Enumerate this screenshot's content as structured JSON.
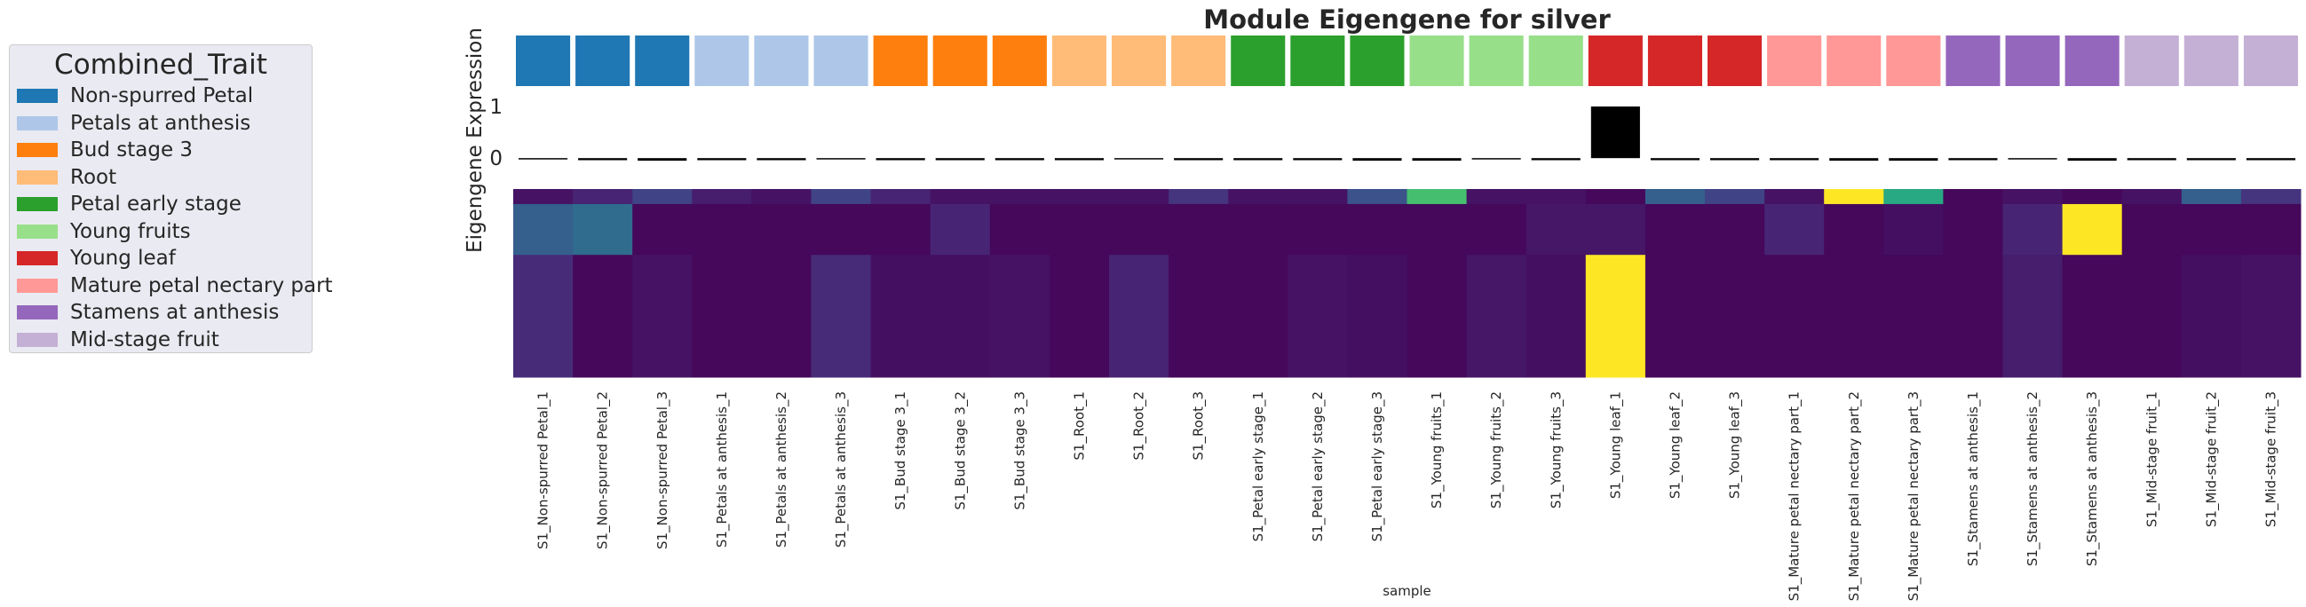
{
  "chart_data": {
    "type": "heatmap",
    "title": "Module Eigengene for silver",
    "ylabel": "Eigengene Expression",
    "xlabel": "sample",
    "yticks": [
      "1",
      "0"
    ],
    "ylim": [
      -0.1,
      1.0
    ],
    "legend": {
      "title": "Combined_Trait",
      "placement": "left",
      "entries": [
        {
          "label": "Non-spurred Petal",
          "color": "#1f77b4"
        },
        {
          "label": "Petals at anthesis",
          "color": "#aec7e8"
        },
        {
          "label": "Bud stage 3",
          "color": "#ff7f0e"
        },
        {
          "label": "Root",
          "color": "#ffbb78"
        },
        {
          "label": "Petal early stage",
          "color": "#2ca02c"
        },
        {
          "label": "Young fruits",
          "color": "#98df8a"
        },
        {
          "label": "Young leaf",
          "color": "#d62728"
        },
        {
          "label": "Mature petal nectary part",
          "color": "#ff9896"
        },
        {
          "label": "Stamens at anthesis",
          "color": "#9467bd"
        },
        {
          "label": "Mid-stage fruit",
          "color": "#c5b0d5"
        }
      ]
    },
    "samples": [
      "S1_Non-spurred Petal_1",
      "S1_Non-spurred Petal_2",
      "S1_Non-spurred Petal_3",
      "S1_Petals at anthesis_1",
      "S1_Petals at anthesis_2",
      "S1_Petals at anthesis_3",
      "S1_Bud stage 3_1",
      "S1_Bud stage 3_2",
      "S1_Bud stage 3_3",
      "S1_Root_1",
      "S1_Root_2",
      "S1_Root_3",
      "S1_Petal early stage_1",
      "S1_Petal early stage_2",
      "S1_Petal early stage_3",
      "S1_Young fruits_1",
      "S1_Young fruits_2",
      "S1_Young fruits_3",
      "S1_Young leaf_1",
      "S1_Young leaf_2",
      "S1_Young leaf_3",
      "S1_Mature petal nectary part_1",
      "S1_Mature petal nectary part_2",
      "S1_Mature petal nectary part_3",
      "S1_Stamens at anthesis_1",
      "S1_Stamens at anthesis_2",
      "S1_Stamens at anthesis_3",
      "S1_Mid-stage fruit_1",
      "S1_Mid-stage fruit_2",
      "S1_Mid-stage fruit_3"
    ],
    "sample_trait_index": [
      0,
      0,
      0,
      1,
      1,
      1,
      2,
      2,
      2,
      3,
      3,
      3,
      4,
      4,
      4,
      5,
      5,
      5,
      6,
      6,
      6,
      7,
      7,
      7,
      8,
      8,
      8,
      9,
      9,
      9
    ],
    "eigengene_values": [
      -0.02,
      -0.04,
      -0.05,
      -0.04,
      -0.04,
      -0.02,
      -0.04,
      -0.04,
      -0.04,
      -0.04,
      -0.02,
      -0.04,
      -0.04,
      -0.04,
      -0.05,
      -0.05,
      -0.02,
      -0.04,
      1.0,
      -0.04,
      -0.04,
      -0.04,
      -0.05,
      -0.05,
      -0.04,
      -0.02,
      -0.05,
      -0.04,
      -0.04,
      -0.04
    ],
    "heatmap": {
      "colormap": "viridis",
      "value_range": [
        0,
        1
      ],
      "gene_groups": [
        {
          "share": 0.08,
          "values": [
            0.05,
            0.1,
            0.2,
            0.08,
            0.05,
            0.2,
            0.1,
            0.05,
            0.05,
            0.05,
            0.05,
            0.15,
            0.05,
            0.05,
            0.25,
            0.7,
            0.05,
            0.05,
            0.02,
            0.3,
            0.2,
            0.05,
            1.0,
            0.6,
            0.02,
            0.05,
            0.02,
            0.05,
            0.3,
            0.15
          ]
        },
        {
          "share": 0.27,
          "values": [
            0.3,
            0.35,
            0.02,
            0.02,
            0.02,
            0.02,
            0.02,
            0.1,
            0.02,
            0.02,
            0.02,
            0.02,
            0.02,
            0.02,
            0.02,
            0.02,
            0.02,
            0.06,
            0.06,
            0.02,
            0.02,
            0.1,
            0.02,
            0.04,
            0.02,
            0.1,
            1.0,
            0.02,
            0.02,
            0.02
          ]
        },
        {
          "share": 0.65,
          "values": [
            0.12,
            0.02,
            0.05,
            0.02,
            0.02,
            0.12,
            0.04,
            0.04,
            0.05,
            0.02,
            0.1,
            0.02,
            0.02,
            0.05,
            0.04,
            0.02,
            0.06,
            0.04,
            1.0,
            0.02,
            0.02,
            0.02,
            0.02,
            0.02,
            0.02,
            0.08,
            0.02,
            0.02,
            0.04,
            0.05
          ]
        }
      ]
    }
  }
}
